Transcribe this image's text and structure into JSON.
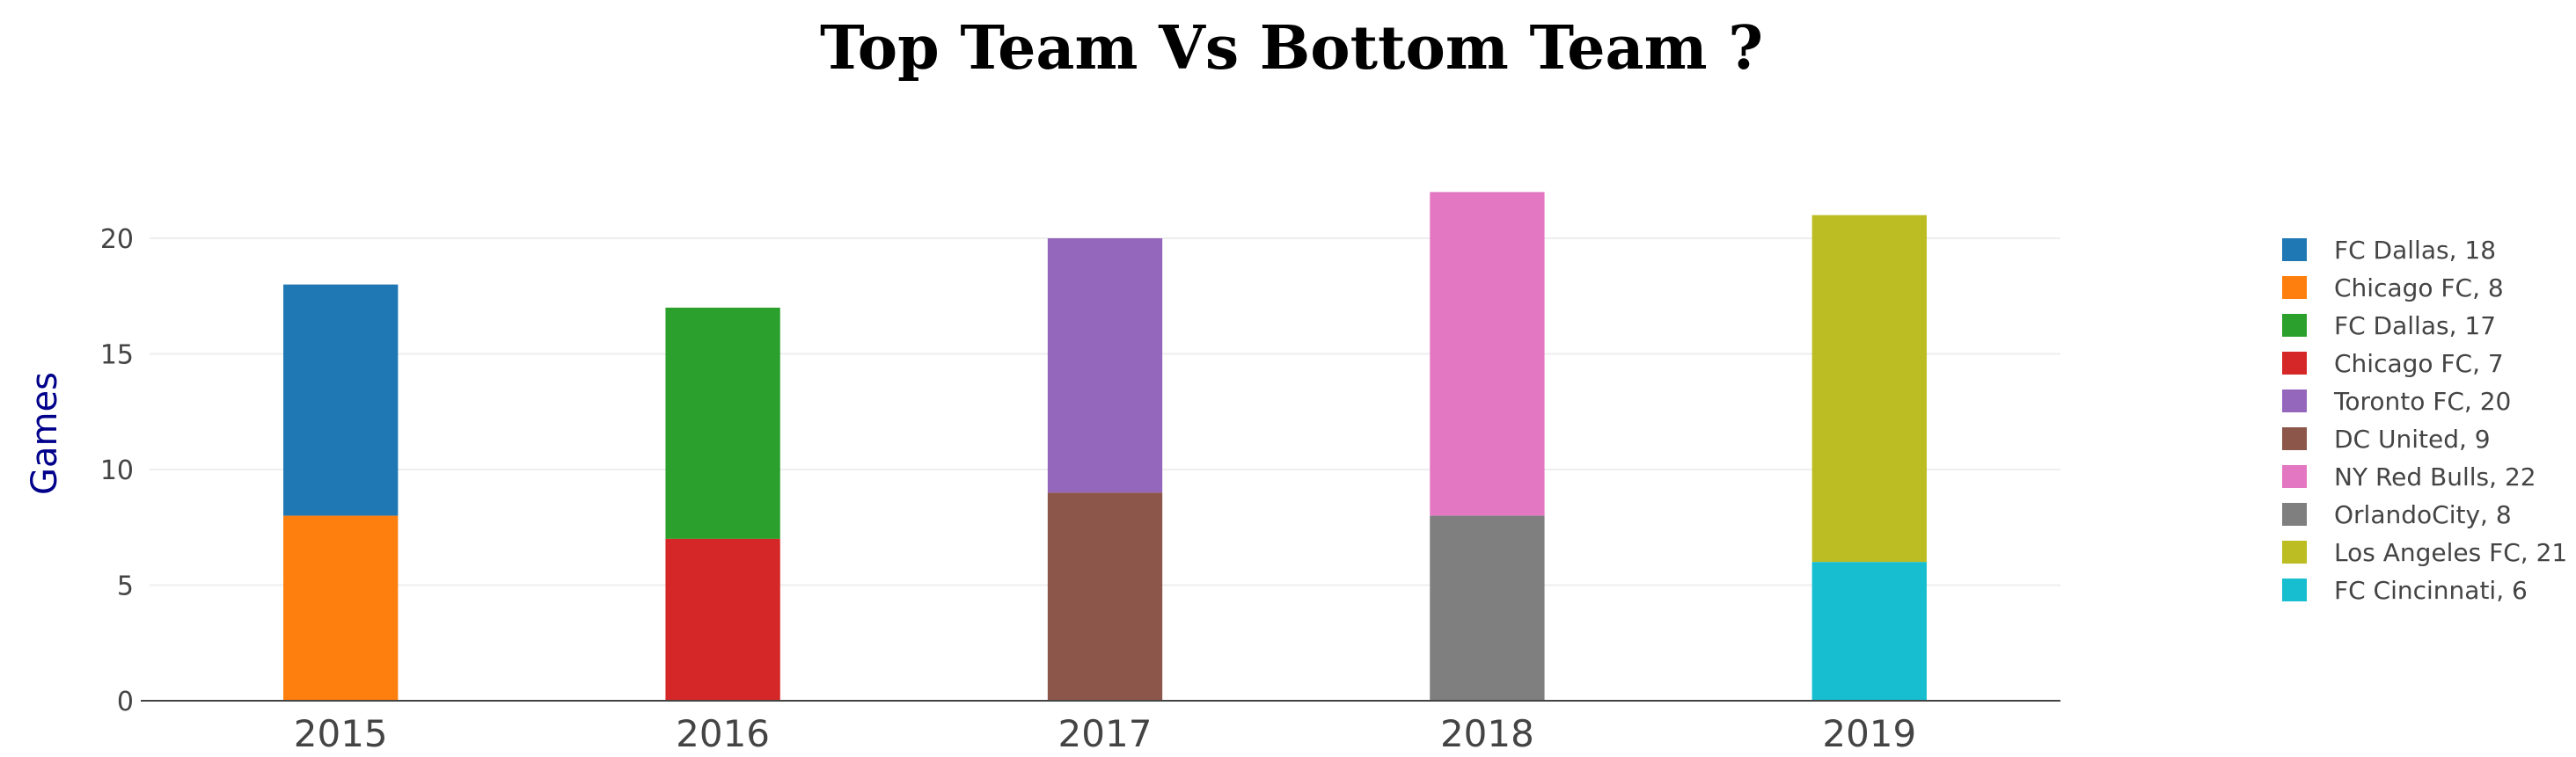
{
  "chart_data": {
    "type": "bar",
    "stacked": true,
    "title": "Top Team Vs Bottom Team ?",
    "xlabel": "",
    "ylabel": "Games",
    "categories": [
      "2015",
      "2016",
      "2017",
      "2018",
      "2019"
    ],
    "ylim": [
      0,
      23
    ],
    "yticks": [
      0,
      5,
      10,
      15,
      20
    ],
    "grid": true,
    "legend_position": "right",
    "title_color": "#00008b",
    "ylabel_color": "#00008b",
    "series": [
      {
        "name": "FC Dallas, 18",
        "category": "2015",
        "base": 8,
        "value": 18,
        "color": "#1f77b4"
      },
      {
        "name": "Chicago FC, 8",
        "category": "2015",
        "base": 0,
        "value": 8,
        "color": "#ff7f0e"
      },
      {
        "name": "FC Dallas, 17",
        "category": "2016",
        "base": 7,
        "value": 17,
        "color": "#2ca02c"
      },
      {
        "name": "Chicago FC, 7",
        "category": "2016",
        "base": 0,
        "value": 7,
        "color": "#d62728"
      },
      {
        "name": "Toronto FC, 20",
        "category": "2017",
        "base": 9,
        "value": 20,
        "color": "#9467bd"
      },
      {
        "name": "DC United, 9",
        "category": "2017",
        "base": 0,
        "value": 9,
        "color": "#8c564b"
      },
      {
        "name": "NY Red Bulls, 22",
        "category": "2018",
        "base": 8,
        "value": 22,
        "color": "#e377c2"
      },
      {
        "name": "OrlandoCity, 8",
        "category": "2018",
        "base": 0,
        "value": 8,
        "color": "#7f7f7f"
      },
      {
        "name": "Los Angeles FC, 21",
        "category": "2019",
        "base": 6,
        "value": 21,
        "color": "#bcbd22"
      },
      {
        "name": "FC Cincinnati, 6",
        "category": "2019",
        "base": 0,
        "value": 6,
        "color": "#17becf"
      }
    ]
  }
}
